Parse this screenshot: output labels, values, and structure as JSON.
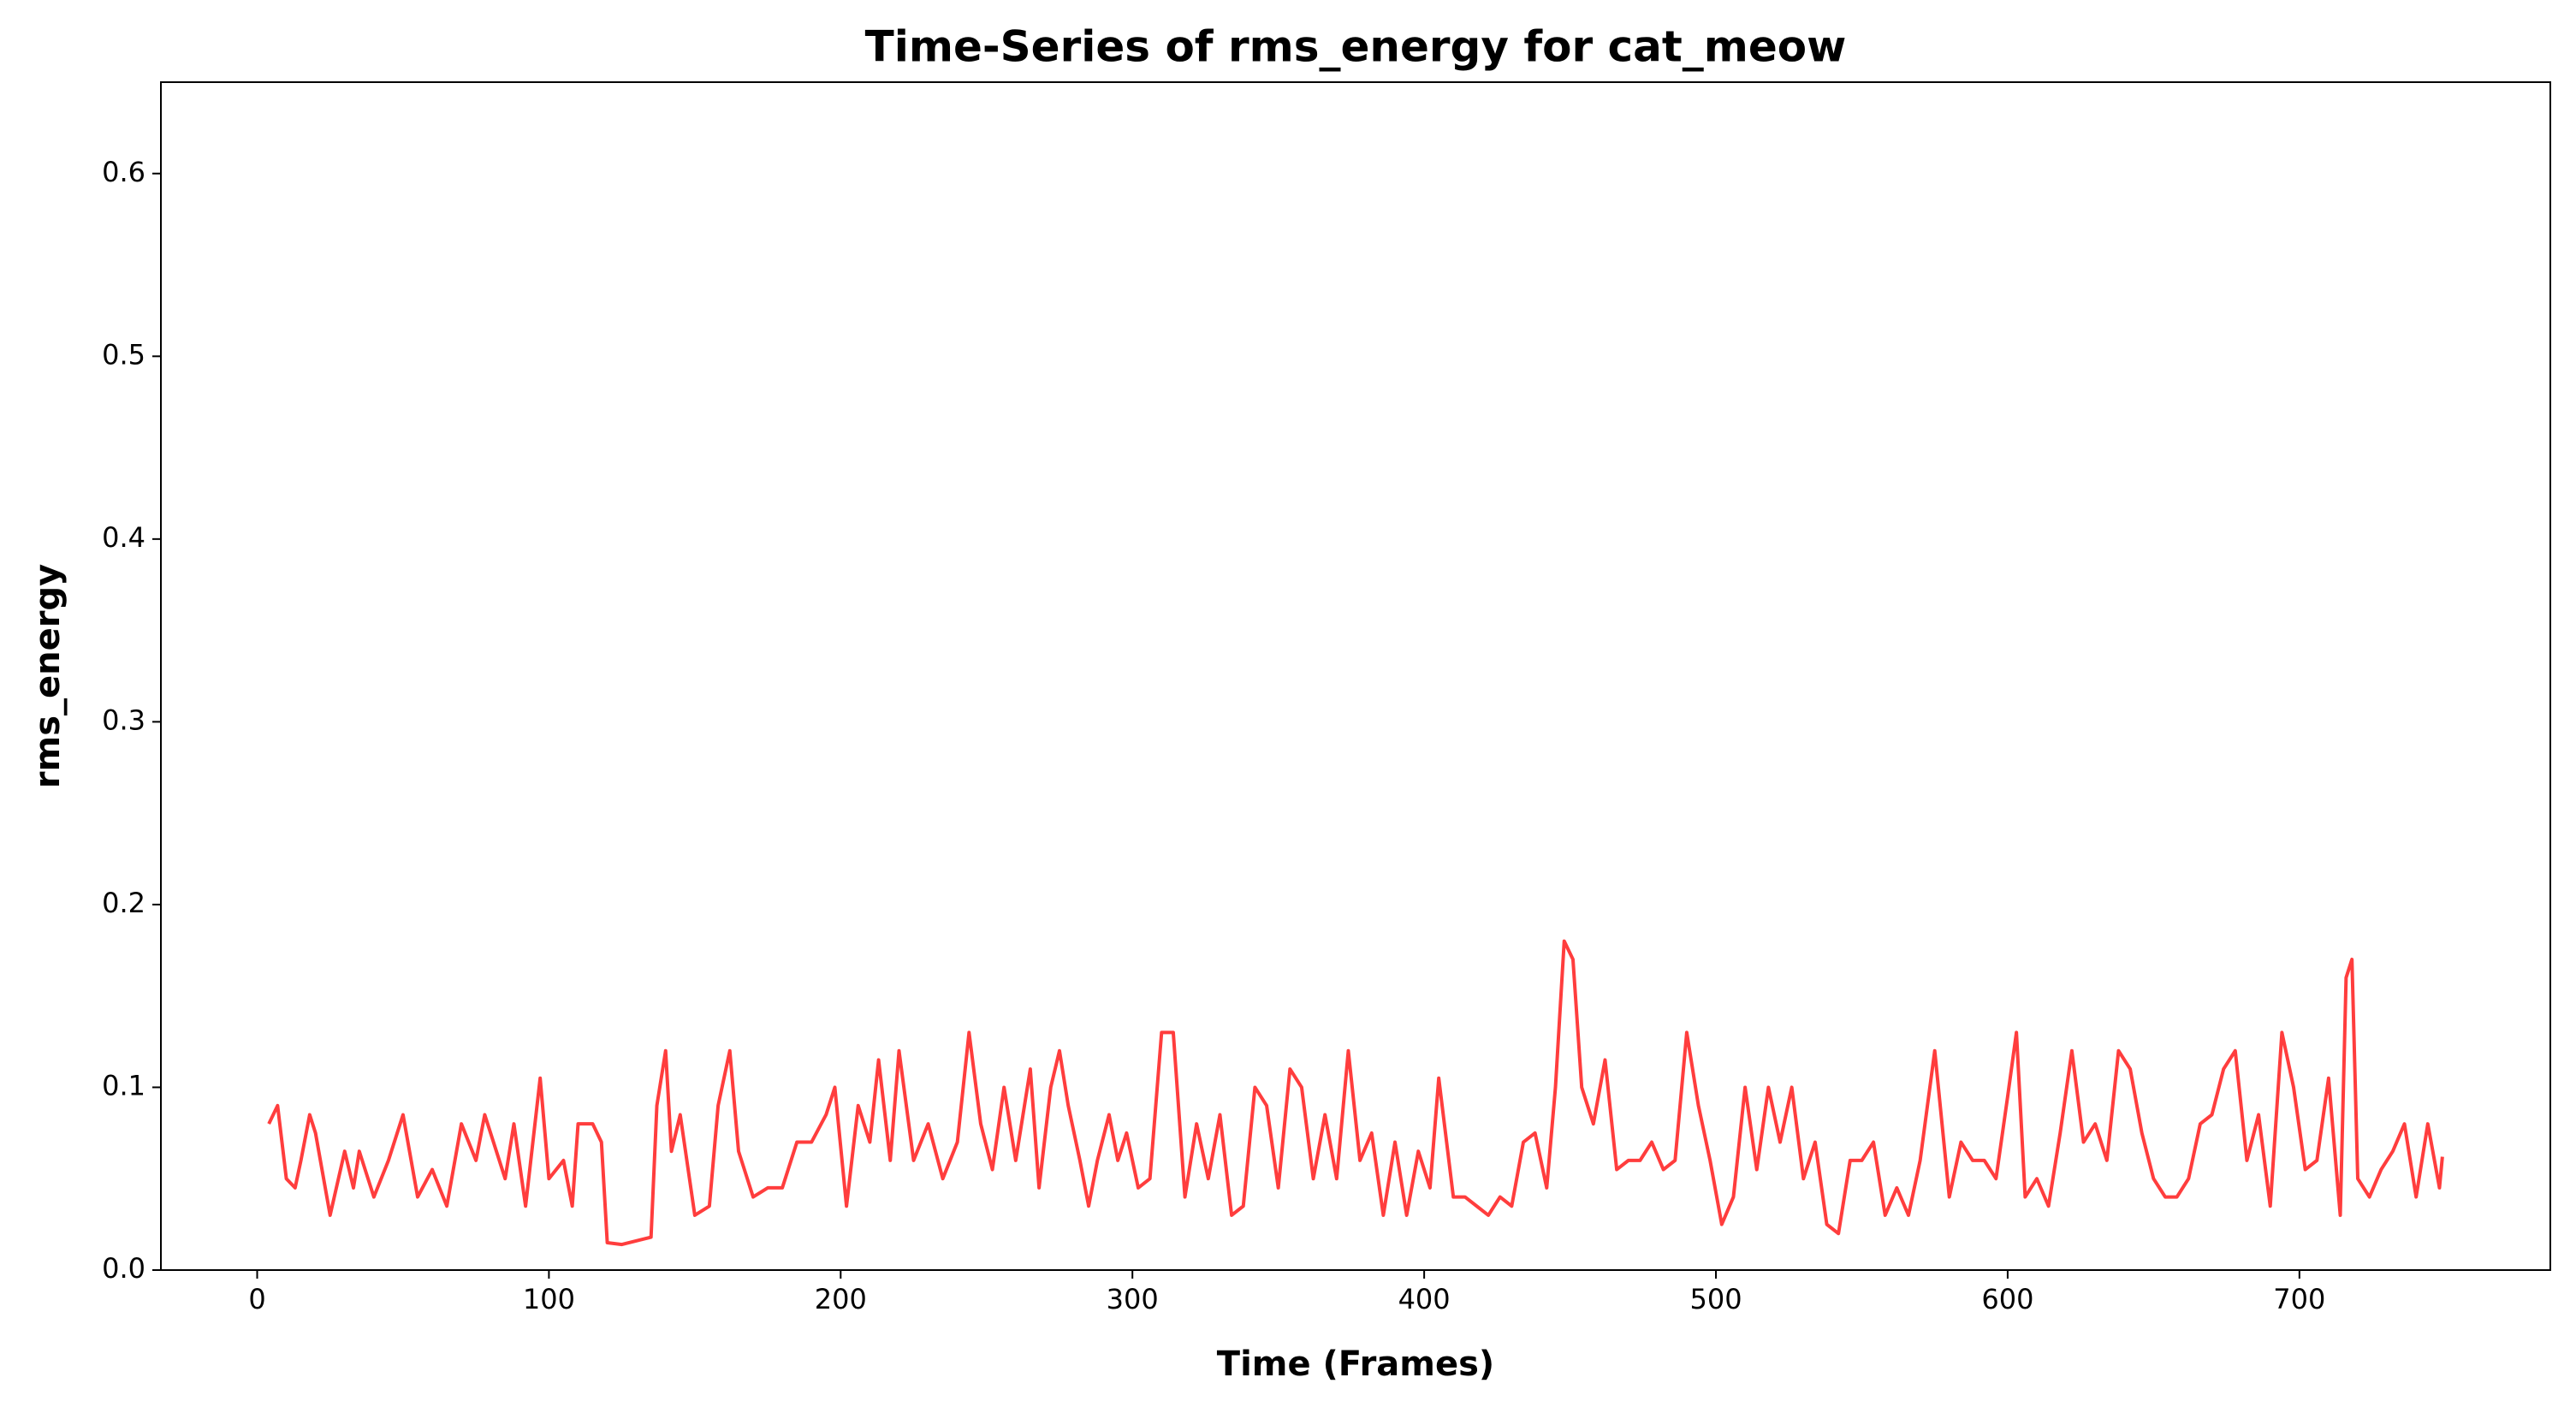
{
  "chart_data": {
    "type": "line",
    "title": "Time-Series of rms_energy for cat_meow",
    "x_label": "Time (Frames)",
    "y_label": "rms_energy",
    "xlim": [
      -33,
      786
    ],
    "ylim": [
      0,
      0.65
    ],
    "xticks": [
      0,
      100,
      200,
      300,
      400,
      500,
      600,
      700
    ],
    "yticks": [
      {
        "value": 0,
        "label": "0.0"
      },
      0.1,
      0.2,
      0.3,
      0.4,
      0.5,
      0.6
    ],
    "grid": false,
    "series": [
      {
        "name": "rms_energy",
        "color": "#ff3333",
        "x": [
          4,
          7,
          10,
          13,
          15,
          18,
          20,
          25,
          30,
          33,
          35,
          40,
          45,
          50,
          55,
          60,
          65,
          70,
          75,
          78,
          85,
          88,
          92,
          97,
          100,
          105,
          108,
          110,
          115,
          118,
          120,
          125,
          130,
          135,
          137,
          140,
          142,
          145,
          150,
          155,
          158,
          162,
          165,
          170,
          175,
          180,
          185,
          190,
          195,
          198,
          202,
          206,
          210,
          213,
          217,
          220,
          225,
          230,
          235,
          240,
          244,
          248,
          252,
          256,
          260,
          265,
          268,
          272,
          275,
          278,
          282,
          285,
          288,
          292,
          295,
          298,
          302,
          306,
          310,
          314,
          318,
          322,
          326,
          330,
          334,
          338,
          342,
          346,
          350,
          354,
          358,
          362,
          366,
          370,
          374,
          378,
          382,
          386,
          390,
          394,
          398,
          402,
          405,
          410,
          414,
          418,
          422,
          426,
          430,
          434,
          438,
          442,
          445,
          448,
          451,
          454,
          458,
          462,
          466,
          470,
          474,
          478,
          482,
          486,
          490,
          494,
          498,
          502,
          506,
          510,
          514,
          518,
          522,
          526,
          530,
          534,
          538,
          542,
          546,
          550,
          554,
          558,
          562,
          566,
          570,
          575,
          580,
          584,
          588,
          592,
          596,
          600,
          603,
          606,
          610,
          614,
          618,
          622,
          626,
          630,
          634,
          638,
          642,
          646,
          650,
          654,
          658,
          662,
          666,
          670,
          674,
          678,
          682,
          686,
          690,
          694,
          698,
          702,
          706,
          710,
          714,
          716,
          718,
          720,
          724,
          728,
          732,
          736,
          740,
          744,
          748,
          749
        ],
        "values": [
          0.08,
          0.09,
          0.05,
          0.045,
          0.06,
          0.085,
          0.075,
          0.03,
          0.065,
          0.045,
          0.065,
          0.04,
          0.06,
          0.085,
          0.04,
          0.055,
          0.035,
          0.08,
          0.06,
          0.085,
          0.05,
          0.08,
          0.035,
          0.105,
          0.05,
          0.06,
          0.035,
          0.08,
          0.08,
          0.07,
          0.015,
          0.014,
          0.016,
          0.018,
          0.09,
          0.12,
          0.065,
          0.085,
          0.03,
          0.035,
          0.09,
          0.12,
          0.065,
          0.04,
          0.045,
          0.045,
          0.07,
          0.07,
          0.085,
          0.1,
          0.035,
          0.09,
          0.07,
          0.115,
          0.06,
          0.12,
          0.06,
          0.08,
          0.05,
          0.07,
          0.13,
          0.08,
          0.055,
          0.1,
          0.06,
          0.11,
          0.045,
          0.1,
          0.12,
          0.09,
          0.06,
          0.035,
          0.06,
          0.085,
          0.06,
          0.075,
          0.045,
          0.05,
          0.13,
          0.13,
          0.04,
          0.08,
          0.05,
          0.085,
          0.03,
          0.035,
          0.1,
          0.09,
          0.045,
          0.11,
          0.1,
          0.05,
          0.085,
          0.05,
          0.12,
          0.06,
          0.075,
          0.03,
          0.07,
          0.03,
          0.065,
          0.045,
          0.105,
          0.04,
          0.04,
          0.035,
          0.03,
          0.04,
          0.035,
          0.07,
          0.075,
          0.045,
          0.1,
          0.18,
          0.17,
          0.1,
          0.08,
          0.115,
          0.055,
          0.06,
          0.06,
          0.07,
          0.055,
          0.06,
          0.13,
          0.09,
          0.06,
          0.025,
          0.04,
          0.1,
          0.055,
          0.1,
          0.07,
          0.1,
          0.05,
          0.07,
          0.025,
          0.02,
          0.06,
          0.06,
          0.07,
          0.03,
          0.045,
          0.03,
          0.06,
          0.12,
          0.04,
          0.07,
          0.06,
          0.06,
          0.05,
          0.095,
          0.13,
          0.04,
          0.05,
          0.035,
          0.075,
          0.12,
          0.07,
          0.08,
          0.06,
          0.12,
          0.11,
          0.075,
          0.05,
          0.04,
          0.04,
          0.05,
          0.08,
          0.085,
          0.11,
          0.12,
          0.06,
          0.085,
          0.035,
          0.13,
          0.1,
          0.055,
          0.06,
          0.105,
          0.03,
          0.16,
          0.17,
          0.05,
          0.04,
          0.055,
          0.065,
          0.08,
          0.04,
          0.08,
          0.045,
          0.062
        ]
      }
    ]
  }
}
